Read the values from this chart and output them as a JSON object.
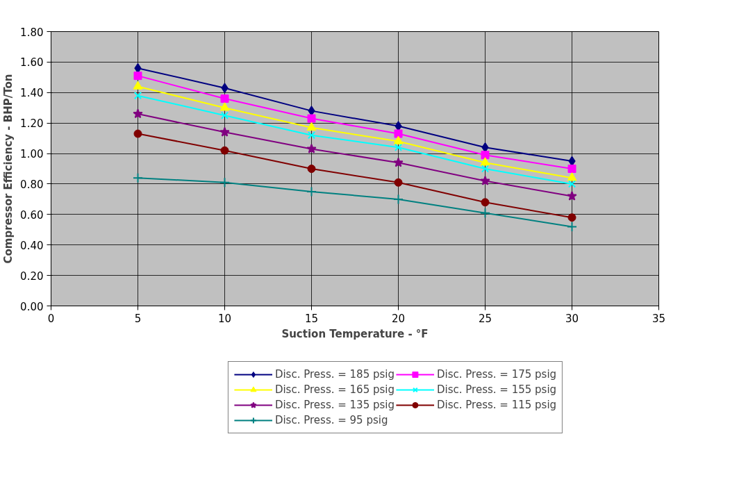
{
  "chart_data": {
    "type": "line",
    "xlabel": "Suction Temperature - °F",
    "ylabel": "Compressor Efficiency - BHP/Ton",
    "x": [
      5,
      10,
      15,
      20,
      25,
      30
    ],
    "xlim": [
      0,
      35
    ],
    "xticks": [
      0,
      5,
      10,
      15,
      20,
      25,
      30,
      35
    ],
    "ylim": [
      0,
      1.8
    ],
    "yticks": [
      {
        "value": 0,
        "label": "0.00"
      },
      {
        "value": 0.2,
        "label": "0.20"
      },
      {
        "value": 0.4,
        "label": "0.40"
      },
      {
        "value": 0.6,
        "label": "0.60"
      },
      {
        "value": 0.8,
        "label": "0.80"
      },
      {
        "value": 1.0,
        "label": "1.00"
      },
      {
        "value": 1.2,
        "label": "1.20"
      },
      {
        "value": 1.4,
        "label": "1.40"
      },
      {
        "value": 1.6,
        "label": "1.60"
      },
      {
        "value": 1.8,
        "label": "1.80"
      }
    ],
    "grid": true,
    "legend": "bottom",
    "line_style": "solid",
    "series": [
      {
        "name": "Disc. Press. = 185 psig",
        "color": "#000080",
        "marker": "diamond",
        "values": [
          1.56,
          1.43,
          1.28,
          1.18,
          1.04,
          0.95
        ]
      },
      {
        "name": "Disc. Press. = 175 psig",
        "color": "#ff00ff",
        "marker": "square",
        "values": [
          1.51,
          1.36,
          1.23,
          1.13,
          0.99,
          0.9
        ]
      },
      {
        "name": "Disc. Press. = 165 psig",
        "color": "#ffff00",
        "marker": "triangle",
        "values": [
          1.44,
          1.3,
          1.17,
          1.08,
          0.94,
          0.84
        ]
      },
      {
        "name": "Disc. Press. = 155 psig",
        "color": "#00ffff",
        "marker": "x",
        "values": [
          1.38,
          1.25,
          1.12,
          1.04,
          0.9,
          0.8
        ]
      },
      {
        "name": "Disc. Press. = 135 psig",
        "color": "#800080",
        "marker": "star",
        "values": [
          1.26,
          1.14,
          1.03,
          0.94,
          0.82,
          0.72
        ]
      },
      {
        "name": "Disc. Press. = 115 psig",
        "color": "#800000",
        "marker": "circle",
        "values": [
          1.13,
          1.02,
          0.9,
          0.81,
          0.68,
          0.58
        ]
      },
      {
        "name": "Disc. Press. = 95 psig",
        "color": "#008080",
        "marker": "cross",
        "values": [
          0.84,
          0.81,
          0.75,
          0.7,
          0.61,
          0.52
        ]
      }
    ]
  }
}
